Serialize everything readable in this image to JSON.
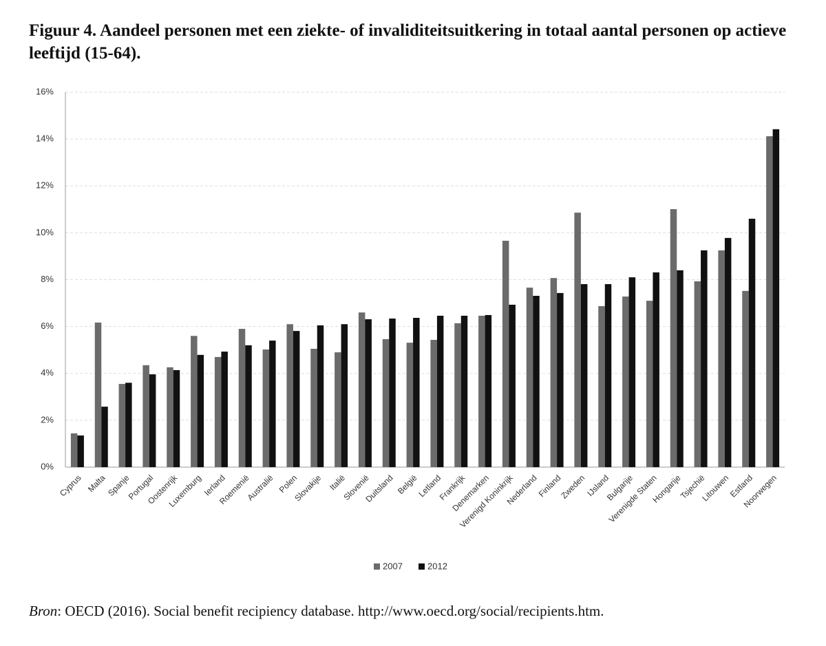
{
  "chart_data": {
    "type": "bar",
    "title": "Figuur 4. Aandeel personen met een ziekte- of invaliditeitsuitkering in totaal aantal personen op actieve leeftijd (15-64).",
    "categories": [
      "Cyprus",
      "Malta",
      "Spanje",
      "Portugal",
      "Oostenrijk",
      "Luxemburg",
      "Ierland",
      "Roemenië",
      "Australië",
      "Polen",
      "Slovakije",
      "Italië",
      "Slovenië",
      "Duitsland",
      "België",
      "Letland",
      "Frankrijk",
      "Denemarken",
      "Verenigd Koninkrijk",
      "Nederland",
      "Finland",
      "Zweden",
      "IJsland",
      "Bulgarije",
      "Verenigde Staten",
      "Hongarije",
      "Tsjechië",
      "Litouwen",
      "Estland",
      "Noorwegen"
    ],
    "series": [
      {
        "name": "2007",
        "color": "#6b6b6b",
        "values": [
          1.44,
          6.17,
          3.55,
          4.35,
          4.26,
          5.6,
          4.7,
          5.9,
          5.02,
          6.1,
          5.05,
          4.9,
          6.6,
          5.46,
          5.31,
          5.43,
          6.14,
          6.46,
          9.66,
          7.66,
          8.07,
          10.86,
          6.87,
          7.28,
          7.1,
          11.01,
          7.93,
          9.25,
          7.52,
          14.12
        ]
      },
      {
        "name": "2012",
        "color": "#111111",
        "values": [
          1.35,
          2.58,
          3.6,
          3.96,
          4.14,
          4.79,
          4.93,
          5.2,
          5.4,
          5.81,
          6.05,
          6.1,
          6.31,
          6.34,
          6.37,
          6.46,
          6.46,
          6.49,
          6.93,
          7.31,
          7.43,
          7.81,
          7.81,
          8.1,
          8.31,
          8.4,
          9.25,
          9.78,
          10.6,
          14.42
        ]
      }
    ],
    "ylim": [
      0,
      16
    ],
    "yticks": [
      {
        "value": 0,
        "label": "0%"
      },
      {
        "value": 2,
        "label": "2%"
      },
      {
        "value": 4,
        "label": "4%"
      },
      {
        "value": 6,
        "label": "6%"
      },
      {
        "value": 8,
        "label": "8%"
      },
      {
        "value": 10,
        "label": "10%"
      },
      {
        "value": 12,
        "label": "12%"
      },
      {
        "value": 14,
        "label": "14%"
      },
      {
        "value": 16,
        "label": "16%"
      }
    ],
    "grid": true,
    "legend": "bottom",
    "source": {
      "label": "Bron",
      "text": ": OECD (2016). Social benefit recipiency database. http://www.oecd.org/social/recipients.htm."
    }
  }
}
